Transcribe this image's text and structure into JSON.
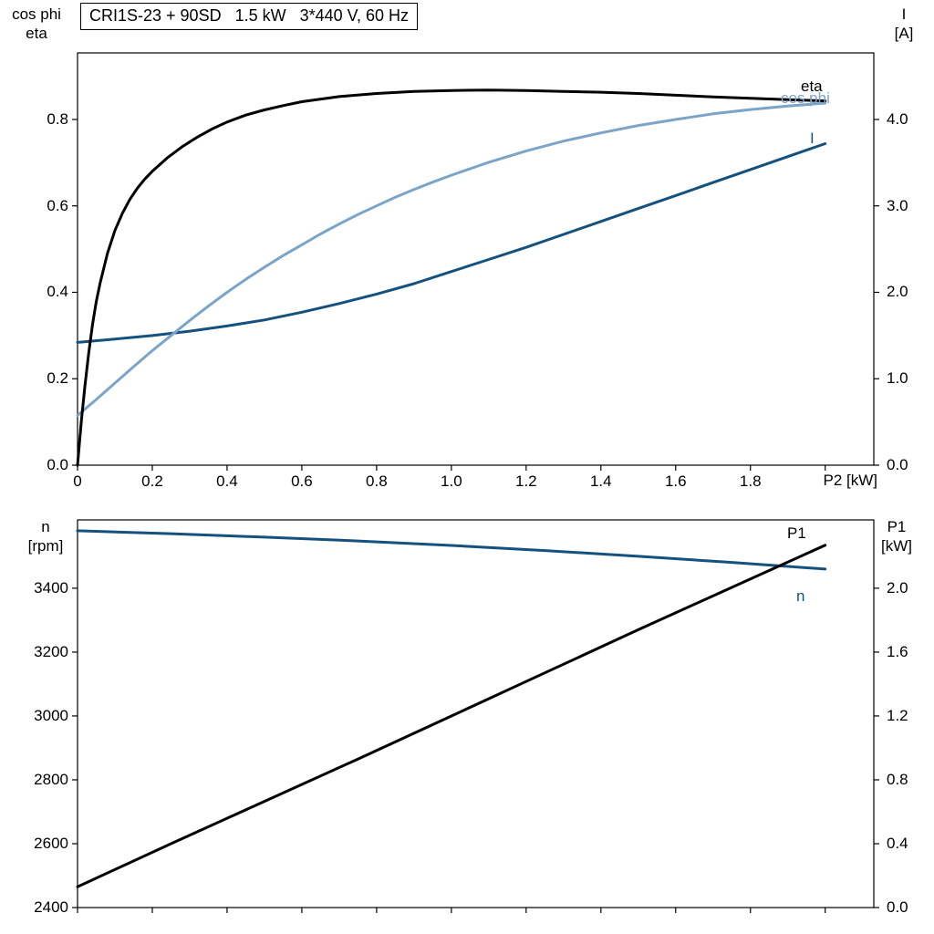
{
  "colors": {
    "black": "#000000",
    "light_blue": "#7BA4C9",
    "dark_blue": "#15517E",
    "frame": "#000000",
    "background": "#FFFFFF"
  },
  "chart_data": [
    {
      "type": "line",
      "title": "CRI1S-23 + 90SD   1.5 kW   3*440 V, 60 Hz",
      "axes": {
        "x": {
          "title": "P2 [kW]",
          "range": [
            0,
            2.13
          ],
          "tick_values": [
            0,
            0.2,
            0.4,
            0.6,
            0.8,
            1.0,
            1.2,
            1.4,
            1.6,
            1.8,
            2.0
          ],
          "tick_labels": [
            "0",
            "0.2",
            "0.4",
            "0.6",
            "0.8",
            "1.0",
            "1.2",
            "1.4",
            "1.6",
            "1.8",
            ""
          ]
        },
        "left": {
          "title_lines": [
            "cos phi",
            "eta"
          ],
          "range": [
            0,
            0.954
          ],
          "tick_values": [
            0,
            0.2,
            0.4,
            0.6,
            0.8
          ],
          "tick_labels": [
            "0.0",
            "0.2",
            "0.4",
            "0.6",
            "0.8"
          ]
        },
        "right": {
          "title_lines": [
            "I",
            "[A]"
          ],
          "range": [
            0,
            4.77
          ],
          "tick_values": [
            0,
            1,
            2,
            3,
            4
          ],
          "tick_labels": [
            "0.0",
            "1.0",
            "2.0",
            "3.0",
            "4.0"
          ]
        }
      },
      "series": [
        {
          "name": "I",
          "axis": "right",
          "color": "dark_blue",
          "points": [
            [
              0,
              1.42
            ],
            [
              0.1,
              1.46
            ],
            [
              0.2,
              1.5
            ],
            [
              0.3,
              1.55
            ],
            [
              0.4,
              1.61
            ],
            [
              0.5,
              1.68
            ],
            [
              0.6,
              1.77
            ],
            [
              0.7,
              1.87
            ],
            [
              0.8,
              1.98
            ],
            [
              0.9,
              2.1
            ],
            [
              1.0,
              2.24
            ],
            [
              1.1,
              2.38
            ],
            [
              1.2,
              2.52
            ],
            [
              1.3,
              2.67
            ],
            [
              1.4,
              2.82
            ],
            [
              1.5,
              2.97
            ],
            [
              1.6,
              3.12
            ],
            [
              1.7,
              3.27
            ],
            [
              1.8,
              3.42
            ],
            [
              1.9,
              3.57
            ],
            [
              2.0,
              3.72
            ]
          ]
        },
        {
          "name": "cos phi",
          "axis": "left",
          "color": "light_blue",
          "points": [
            [
              0,
              0.115
            ],
            [
              0.05,
              0.152
            ],
            [
              0.1,
              0.19
            ],
            [
              0.15,
              0.228
            ],
            [
              0.2,
              0.265
            ],
            [
              0.25,
              0.3
            ],
            [
              0.3,
              0.335
            ],
            [
              0.35,
              0.368
            ],
            [
              0.4,
              0.4
            ],
            [
              0.45,
              0.43
            ],
            [
              0.5,
              0.458
            ],
            [
              0.55,
              0.485
            ],
            [
              0.6,
              0.51
            ],
            [
              0.65,
              0.535
            ],
            [
              0.7,
              0.558
            ],
            [
              0.75,
              0.58
            ],
            [
              0.8,
              0.6
            ],
            [
              0.85,
              0.62
            ],
            [
              0.9,
              0.638
            ],
            [
              0.95,
              0.655
            ],
            [
              1.0,
              0.671
            ],
            [
              1.1,
              0.701
            ],
            [
              1.2,
              0.727
            ],
            [
              1.3,
              0.75
            ],
            [
              1.4,
              0.769
            ],
            [
              1.5,
              0.786
            ],
            [
              1.6,
              0.8
            ],
            [
              1.7,
              0.813
            ],
            [
              1.8,
              0.823
            ],
            [
              1.9,
              0.831
            ],
            [
              2.0,
              0.838
            ]
          ]
        },
        {
          "name": "eta",
          "axis": "left",
          "color": "black",
          "points": [
            [
              0,
              0
            ],
            [
              0.01,
              0.1
            ],
            [
              0.02,
              0.185
            ],
            [
              0.03,
              0.26
            ],
            [
              0.04,
              0.325
            ],
            [
              0.05,
              0.378
            ],
            [
              0.06,
              0.42
            ],
            [
              0.08,
              0.49
            ],
            [
              0.1,
              0.543
            ],
            [
              0.12,
              0.583
            ],
            [
              0.14,
              0.615
            ],
            [
              0.16,
              0.641
            ],
            [
              0.18,
              0.662
            ],
            [
              0.2,
              0.68
            ],
            [
              0.24,
              0.711
            ],
            [
              0.28,
              0.737
            ],
            [
              0.32,
              0.759
            ],
            [
              0.36,
              0.778
            ],
            [
              0.4,
              0.794
            ],
            [
              0.45,
              0.81
            ],
            [
              0.5,
              0.822
            ],
            [
              0.55,
              0.832
            ],
            [
              0.6,
              0.841
            ],
            [
              0.7,
              0.853
            ],
            [
              0.8,
              0.86
            ],
            [
              0.9,
              0.865
            ],
            [
              1.0,
              0.867
            ],
            [
              1.1,
              0.868
            ],
            [
              1.2,
              0.867
            ],
            [
              1.3,
              0.865
            ],
            [
              1.4,
              0.863
            ],
            [
              1.5,
              0.86
            ],
            [
              1.6,
              0.856
            ],
            [
              1.7,
              0.852
            ],
            [
              1.8,
              0.849
            ],
            [
              1.9,
              0.846
            ],
            [
              2.0,
              0.843
            ]
          ]
        }
      ]
    },
    {
      "type": "line",
      "title": "",
      "axes": {
        "x": {
          "title": "",
          "range": [
            0,
            2.13
          ],
          "tick_values": [
            0,
            0.2,
            0.4,
            0.6,
            0.8,
            1.0,
            1.2,
            1.4,
            1.6,
            1.8,
            2.0
          ],
          "tick_labels": [
            "",
            "",
            "",
            "",
            "",
            "",
            "",
            "",
            "",
            "",
            ""
          ]
        },
        "left": {
          "title_lines": [
            "n",
            "[rpm]"
          ],
          "range": [
            2400,
            3614
          ],
          "tick_values": [
            2400,
            2600,
            2800,
            3000,
            3200,
            3400
          ],
          "tick_labels": [
            "2400",
            "2600",
            "2800",
            "3000",
            "3200",
            "3400"
          ]
        },
        "right": {
          "title_lines": [
            "P1",
            "[kW]"
          ],
          "range": [
            0,
            2.428
          ],
          "tick_values": [
            0,
            0.4,
            0.8,
            1.2,
            1.6,
            2.0
          ],
          "tick_labels": [
            "0.0",
            "0.4",
            "0.8",
            "1.2",
            "1.6",
            "2.0"
          ]
        }
      },
      "series": [
        {
          "name": "n",
          "axis": "left",
          "color": "dark_blue",
          "points": [
            [
              0,
              3580
            ],
            [
              0.25,
              3571
            ],
            [
              0.5,
              3560
            ],
            [
              0.75,
              3548
            ],
            [
              1.0,
              3534
            ],
            [
              1.25,
              3518
            ],
            [
              1.5,
              3500
            ],
            [
              1.75,
              3481
            ],
            [
              2.0,
              3460
            ]
          ]
        },
        {
          "name": "P1",
          "axis": "right",
          "color": "black",
          "points": [
            [
              0,
              0.13
            ],
            [
              0.25,
              0.4
            ],
            [
              0.5,
              0.665
            ],
            [
              0.75,
              0.93
            ],
            [
              1.0,
              1.2
            ],
            [
              1.25,
              1.47
            ],
            [
              1.5,
              1.74
            ],
            [
              1.75,
              2.005
            ],
            [
              2.0,
              2.27
            ]
          ]
        }
      ]
    }
  ]
}
